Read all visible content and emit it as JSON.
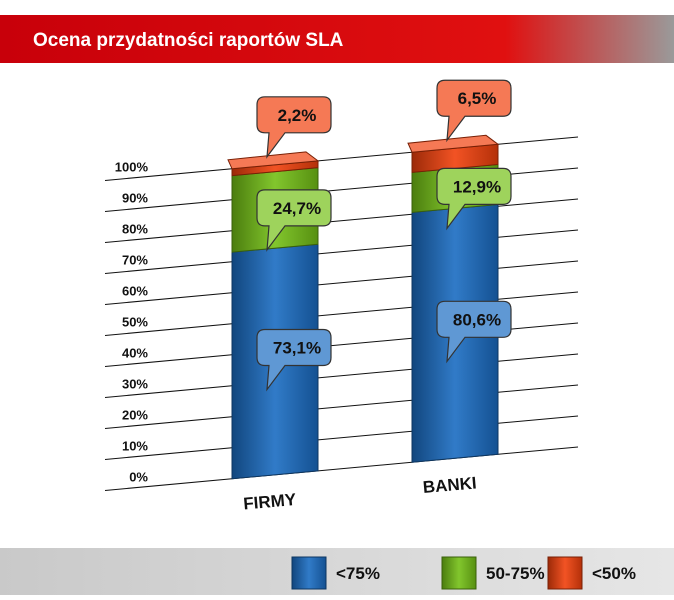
{
  "chart_data": {
    "type": "stacked-bar-3d",
    "title": "Ocena przydatności raportów SLA",
    "categories": [
      "FIRMY",
      "BANKI"
    ],
    "series": [
      {
        "name": "<75%",
        "color": "#1a6cc2",
        "values": [
          73.1,
          80.6
        ],
        "value_labels": [
          "73,1%",
          "80,6%"
        ]
      },
      {
        "name": "50-75%",
        "color": "#74c016",
        "values": [
          24.7,
          12.9
        ],
        "value_labels": [
          "24,7%",
          "12,9%"
        ]
      },
      {
        "name": "<50%",
        "color": "#f0400c",
        "values": [
          2.2,
          6.5
        ],
        "value_labels": [
          "2,2%",
          "6,5%"
        ]
      }
    ],
    "ylim": [
      0,
      100
    ],
    "yticks": [
      {
        "value": 0,
        "label": "0%"
      },
      {
        "value": 10,
        "label": "10%"
      },
      {
        "value": 20,
        "label": "20%"
      },
      {
        "value": 30,
        "label": "30%"
      },
      {
        "value": 40,
        "label": "40%"
      },
      {
        "value": 50,
        "label": "50%"
      },
      {
        "value": 60,
        "label": "60%"
      },
      {
        "value": 70,
        "label": "70%"
      },
      {
        "value": 80,
        "label": "80%"
      },
      {
        "value": 90,
        "label": "90%"
      },
      {
        "value": 100,
        "label": "100%"
      }
    ],
    "grid": true
  }
}
